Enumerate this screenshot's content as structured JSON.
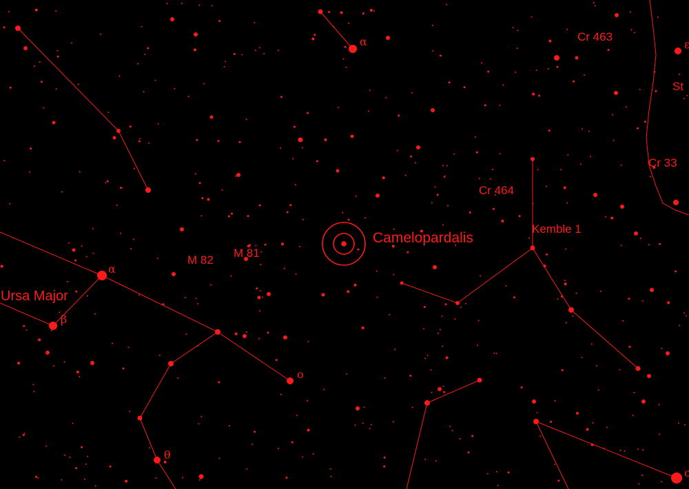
{
  "map": {
    "color": "#ff1a1a",
    "background": "#000000",
    "target_icon": "telescope-reticle-icon"
  },
  "labels": {
    "camelopardalis": "Camelopardalis",
    "ursa_major": "Ursa Major",
    "m81": "M 81",
    "m82": "M 82",
    "cr463": "Cr 463",
    "cr464": "Cr 464",
    "cr33": "Cr 33",
    "kemble1": "Kemble 1",
    "st_partial": "St",
    "alpha_top": "α",
    "alpha_uma": "α",
    "beta_uma": "β",
    "omicron": "ο",
    "theta": "θ",
    "eps_partial": "ε",
    "sigma_partial": "σ"
  }
}
